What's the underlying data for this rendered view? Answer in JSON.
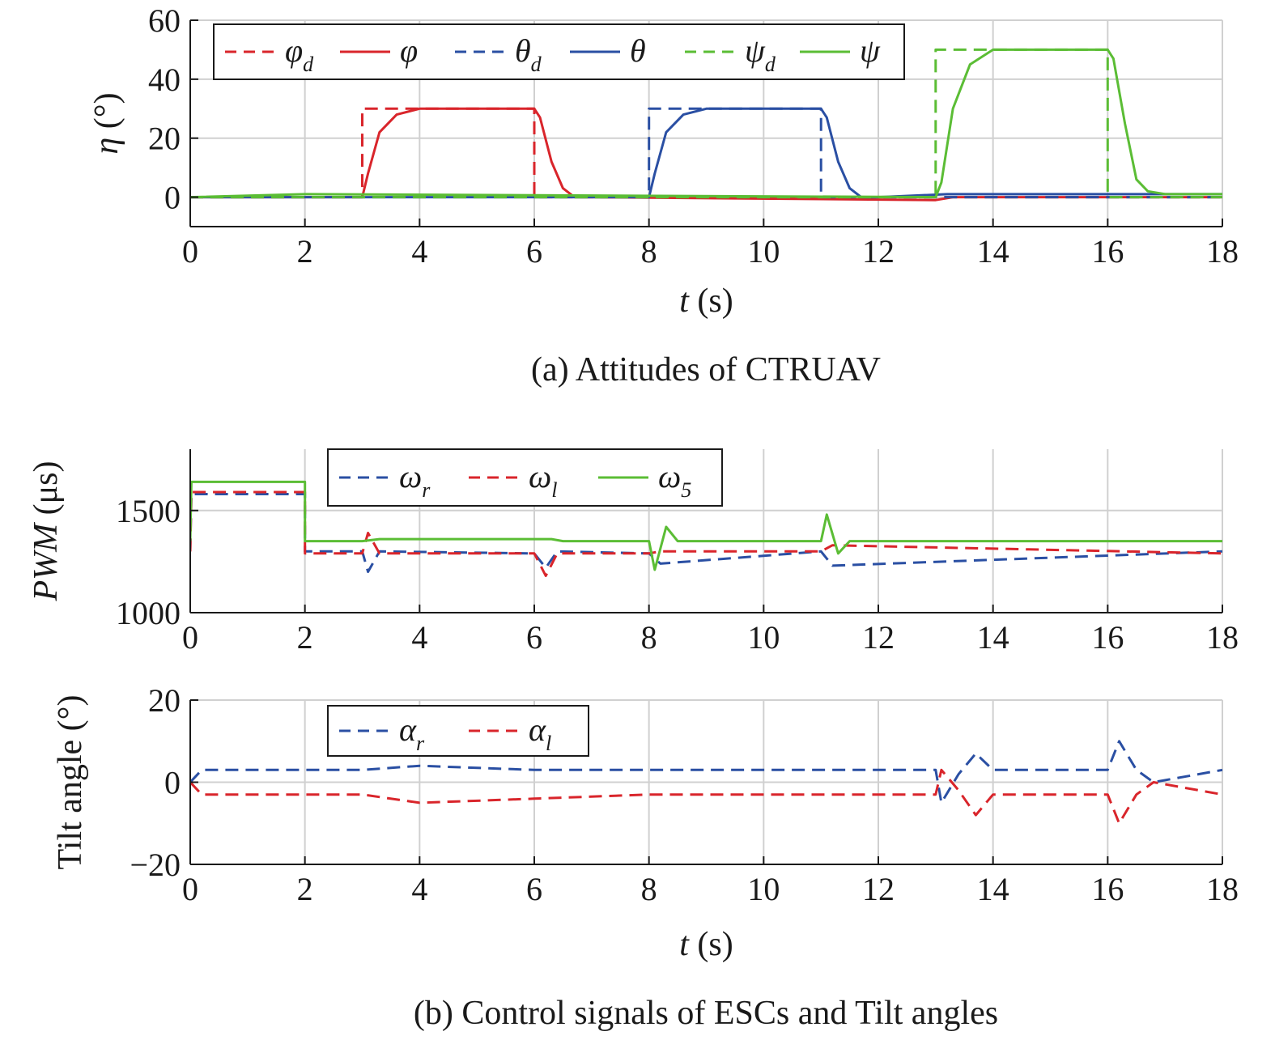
{
  "figure": {
    "caption_a": "(a) Attitudes of CTRUAV",
    "caption_b": "(b) Control signals of ESCs and Tilt angles"
  },
  "chart_data": [
    {
      "id": "attitudes",
      "type": "line",
      "xlabel_var": "t",
      "xlabel_unit": " (s)",
      "ylabel_var": "η",
      "ylabel_unit": " (°)",
      "xlim": [
        0,
        18
      ],
      "ylim": [
        -10,
        60
      ],
      "xticks": [
        0,
        2,
        4,
        6,
        8,
        10,
        12,
        14,
        16,
        18
      ],
      "yticks": [
        0,
        20,
        40,
        60
      ],
      "grid": true,
      "legend_position": "top-left",
      "series": [
        {
          "name": "φ",
          "sub": "d",
          "color": "#d9252b",
          "dashed": true,
          "x": [
            0,
            3,
            3,
            6,
            6,
            18
          ],
          "y": [
            0,
            0,
            30,
            30,
            0,
            0
          ]
        },
        {
          "name": "φ",
          "sub": "",
          "color": "#d9252b",
          "dashed": false,
          "x": [
            0,
            2,
            3.0,
            3.1,
            3.3,
            3.6,
            4.0,
            5.0,
            6.0,
            6.1,
            6.3,
            6.5,
            6.7,
            7,
            13,
            13.3,
            18
          ],
          "y": [
            0,
            0,
            0,
            8,
            22,
            28,
            30,
            30,
            30,
            27,
            12,
            3,
            0,
            0,
            -1,
            0,
            0
          ]
        },
        {
          "name": "θ",
          "sub": "d",
          "color": "#2a4fa3",
          "dashed": true,
          "x": [
            0,
            8,
            8,
            11,
            11,
            18
          ],
          "y": [
            0,
            0,
            30,
            30,
            0,
            0
          ]
        },
        {
          "name": "θ",
          "sub": "",
          "color": "#2a4fa3",
          "dashed": false,
          "x": [
            0,
            2,
            8.0,
            8.1,
            8.3,
            8.6,
            9.0,
            10.0,
            11.0,
            11.1,
            11.3,
            11.5,
            11.7,
            12,
            13.2,
            18
          ],
          "y": [
            0,
            0,
            0,
            8,
            22,
            28,
            30,
            30,
            30,
            27,
            12,
            3,
            0,
            0,
            1,
            1
          ]
        },
        {
          "name": "ψ",
          "sub": "d",
          "color": "#5bbd35",
          "dashed": true,
          "x": [
            0,
            13,
            13,
            16,
            16,
            18
          ],
          "y": [
            0,
            0,
            50,
            50,
            0,
            0
          ]
        },
        {
          "name": "ψ",
          "sub": "",
          "color": "#5bbd35",
          "dashed": false,
          "x": [
            0,
            2,
            13.0,
            13.1,
            13.3,
            13.6,
            14.0,
            15.0,
            16.0,
            16.1,
            16.3,
            16.5,
            16.7,
            17,
            18
          ],
          "y": [
            0,
            1,
            0,
            5,
            30,
            45,
            50,
            50,
            50,
            47,
            25,
            6,
            2,
            1,
            1
          ]
        }
      ]
    },
    {
      "id": "pwm",
      "type": "line",
      "xlabel_var": "",
      "xlabel_unit": "",
      "ylabel_var": "PWM",
      "ylabel_unit": " (μs)",
      "xlim": [
        0,
        18
      ],
      "ylim": [
        1000,
        1800
      ],
      "xticks": [
        0,
        2,
        4,
        6,
        8,
        10,
        12,
        14,
        16,
        18
      ],
      "yticks": [
        1000,
        1500
      ],
      "grid": true,
      "legend_position": "top-center",
      "series": [
        {
          "name": "ω",
          "sub": "r",
          "color": "#2a4fa3",
          "dashed": true,
          "x": [
            0,
            0.02,
            2.0,
            2.0,
            3.0,
            3.1,
            3.3,
            6.0,
            6.2,
            6.4,
            8.0,
            8.2,
            11.0,
            11.2,
            18
          ],
          "y": [
            1300,
            1580,
            1580,
            1300,
            1300,
            1200,
            1300,
            1290,
            1220,
            1300,
            1290,
            1240,
            1300,
            1230,
            1300
          ]
        },
        {
          "name": "ω",
          "sub": "l",
          "color": "#d9252b",
          "dashed": true,
          "x": [
            0,
            0.02,
            2.0,
            2.0,
            3.0,
            3.1,
            3.3,
            6.0,
            6.2,
            6.4,
            8.0,
            8.2,
            11.0,
            11.2,
            18
          ],
          "y": [
            1300,
            1590,
            1590,
            1290,
            1290,
            1390,
            1290,
            1290,
            1180,
            1290,
            1290,
            1300,
            1300,
            1330,
            1290
          ]
        },
        {
          "name": "ω",
          "sub": "5",
          "color": "#5bbd35",
          "dashed": false,
          "x": [
            0,
            0.02,
            2.0,
            2.0,
            3.0,
            3.3,
            6.3,
            6.5,
            8.0,
            8.1,
            8.3,
            8.5,
            11.0,
            11.1,
            11.3,
            11.5,
            18
          ],
          "y": [
            1350,
            1640,
            1640,
            1350,
            1350,
            1360,
            1360,
            1350,
            1350,
            1210,
            1420,
            1350,
            1350,
            1480,
            1290,
            1350,
            1350
          ]
        }
      ]
    },
    {
      "id": "tilt",
      "type": "line",
      "xlabel_var": "t",
      "xlabel_unit": " (s)",
      "ylabel_var": "",
      "ylabel_unit": "Tilt angle (°)",
      "xlim": [
        0,
        18
      ],
      "ylim": [
        -20,
        20
      ],
      "xticks": [
        0,
        2,
        4,
        6,
        8,
        10,
        12,
        14,
        16,
        18
      ],
      "yticks": [
        -20,
        0,
        20
      ],
      "grid": true,
      "legend_position": "top-left",
      "series": [
        {
          "name": "α",
          "sub": "r",
          "color": "#2a4fa3",
          "dashed": true,
          "x": [
            0,
            0.2,
            3,
            4,
            6,
            8,
            13.0,
            13.1,
            13.4,
            13.7,
            14.0,
            16.0,
            16.2,
            16.5,
            16.8,
            18
          ],
          "y": [
            0,
            3,
            3,
            4,
            3,
            3,
            3,
            -5,
            2,
            7,
            3,
            3,
            10,
            3,
            0,
            3
          ]
        },
        {
          "name": "α",
          "sub": "l",
          "color": "#d9252b",
          "dashed": true,
          "x": [
            0,
            0.2,
            3,
            4,
            6,
            8,
            13.0,
            13.1,
            13.4,
            13.7,
            14.0,
            16.0,
            16.2,
            16.5,
            16.8,
            18
          ],
          "y": [
            0,
            -3,
            -3,
            -5,
            -4,
            -3,
            -3,
            3,
            -2,
            -8,
            -3,
            -3,
            -10,
            -3,
            0,
            -3
          ]
        }
      ]
    }
  ]
}
